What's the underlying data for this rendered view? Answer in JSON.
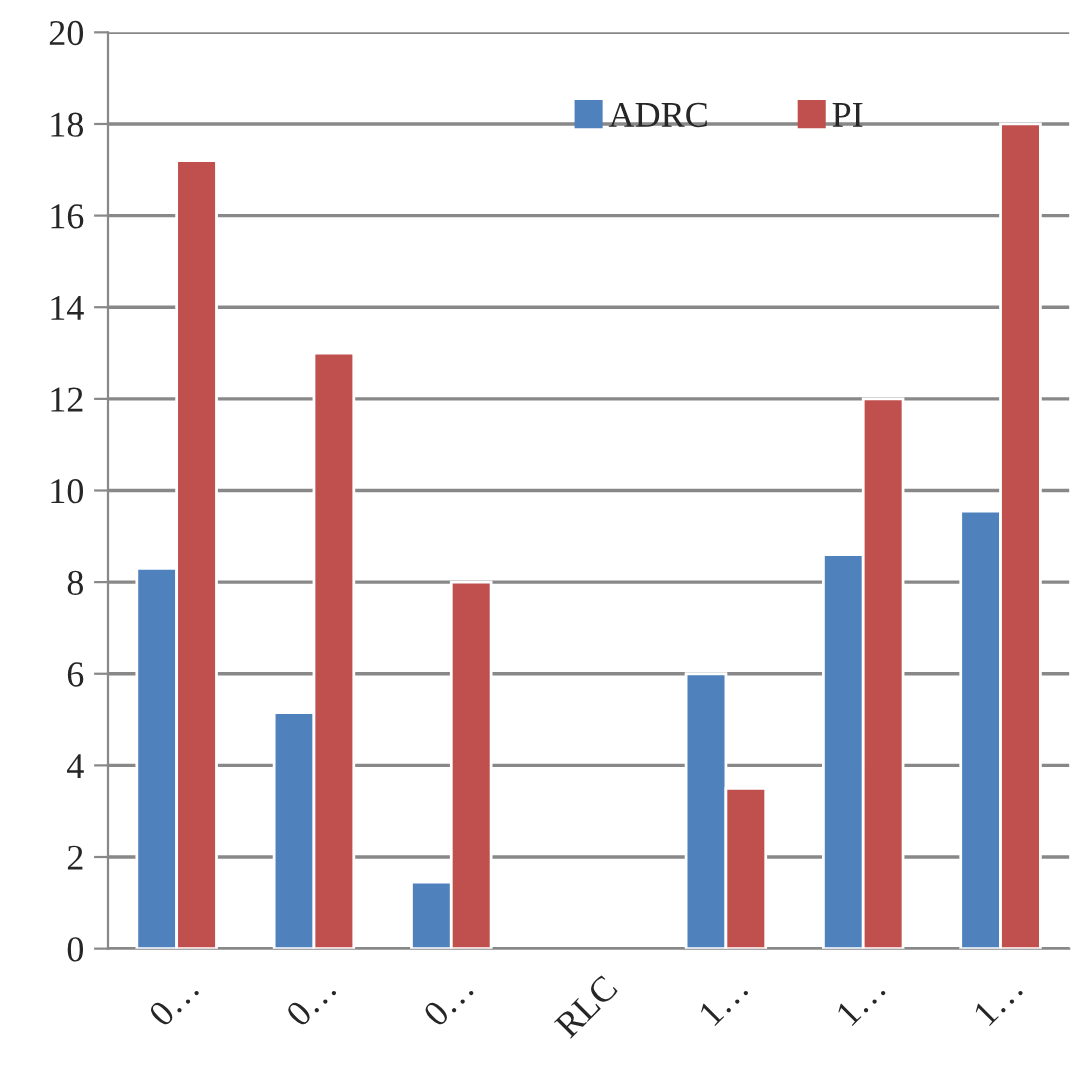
{
  "chart_data": {
    "type": "bar",
    "categories": [
      "0…",
      "0…",
      "0…",
      "RLC",
      "1…",
      "1…",
      "1…"
    ],
    "series": [
      {
        "name": "ADRC",
        "color": "#4f81bd",
        "values": [
          8.3,
          5.15,
          1.45,
          null,
          6.0,
          8.6,
          9.55
        ]
      },
      {
        "name": "PI",
        "color": "#c0504d",
        "values": [
          17.2,
          13.0,
          8.0,
          null,
          3.5,
          12.0,
          18.0
        ]
      }
    ],
    "ylim": [
      0,
      20
    ],
    "yticks": [
      0,
      2,
      4,
      6,
      8,
      10,
      12,
      14,
      16,
      18,
      20
    ],
    "grid": "y",
    "legend": "top right"
  }
}
